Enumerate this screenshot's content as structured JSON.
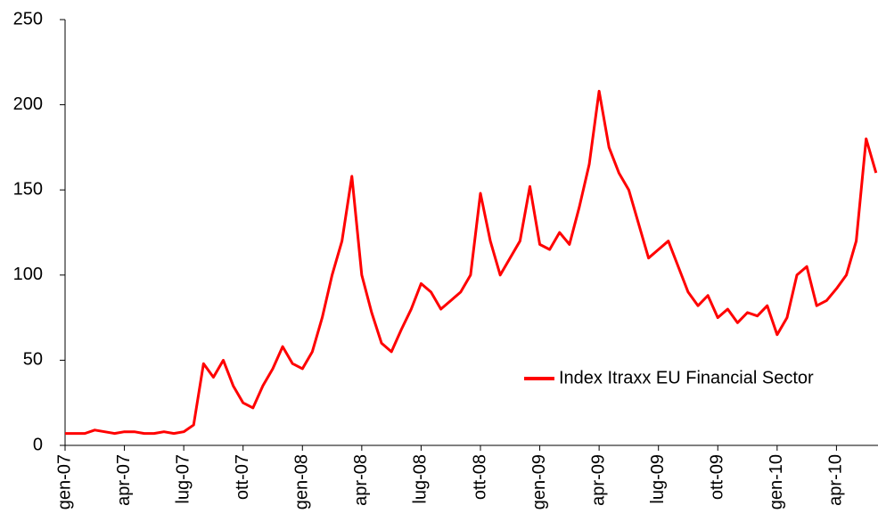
{
  "chart_data": {
    "type": "line",
    "x": [
      0,
      0.5,
      1,
      1.5,
      2,
      2.5,
      3,
      3.5,
      4,
      4.5,
      5,
      5.5,
      6,
      6.5,
      7,
      7.5,
      8,
      8.5,
      9,
      9.5,
      10,
      10.5,
      11,
      11.5,
      12,
      12.5,
      13,
      13.5,
      14,
      14.5,
      15,
      15.5,
      16,
      16.5,
      17,
      17.5,
      18,
      18.5,
      19,
      19.5,
      20,
      20.5,
      21,
      21.5,
      22,
      22.5,
      23,
      23.5,
      24,
      24.5,
      25,
      25.5,
      26,
      26.5,
      27,
      27.5,
      28,
      28.5,
      29,
      29.5,
      30,
      30.5,
      31,
      31.5,
      32,
      32.5,
      33,
      33.5,
      34,
      34.5,
      35,
      35.5,
      36,
      36.5,
      37,
      37.5,
      38,
      38.5,
      39,
      39.5,
      40,
      40.5,
      41
    ],
    "series": [
      {
        "name": "Index Itraxx EU Financial Sector",
        "color": "#ff0000",
        "values": [
          7,
          7,
          7,
          9,
          8,
          7,
          8,
          8,
          7,
          7,
          8,
          7,
          8,
          12,
          48,
          40,
          50,
          35,
          25,
          22,
          35,
          45,
          58,
          48,
          45,
          55,
          75,
          100,
          120,
          158,
          100,
          78,
          60,
          55,
          68,
          80,
          95,
          90,
          80,
          85,
          90,
          100,
          148,
          120,
          100,
          110,
          120,
          152,
          118,
          115,
          125,
          118,
          140,
          165,
          208,
          175,
          160,
          150,
          130,
          110,
          115,
          120,
          105,
          90,
          82,
          88,
          75,
          80,
          72,
          78,
          76,
          82,
          65,
          75,
          100,
          105,
          82,
          85,
          92,
          100,
          120,
          180,
          160
        ]
      }
    ],
    "xlim": [
      0,
      41.1
    ],
    "xticks": [
      {
        "value": 0,
        "label": "gen-07"
      },
      {
        "value": 3,
        "label": "apr-07"
      },
      {
        "value": 6,
        "label": "lug-07"
      },
      {
        "value": 9,
        "label": "ott-07"
      },
      {
        "value": 12,
        "label": "gen-08"
      },
      {
        "value": 15,
        "label": "apr-08"
      },
      {
        "value": 18,
        "label": "lug-08"
      },
      {
        "value": 21,
        "label": "ott-08"
      },
      {
        "value": 24,
        "label": "gen-09"
      },
      {
        "value": 27,
        "label": "apr-09"
      },
      {
        "value": 30,
        "label": "lug-09"
      },
      {
        "value": 33,
        "label": "ott-09"
      },
      {
        "value": 36,
        "label": "gen-10"
      },
      {
        "value": 39,
        "label": "apr-10"
      }
    ],
    "ylim": [
      0,
      250
    ],
    "yticks": [
      0,
      50,
      100,
      150,
      200,
      250
    ],
    "legend": "right"
  }
}
